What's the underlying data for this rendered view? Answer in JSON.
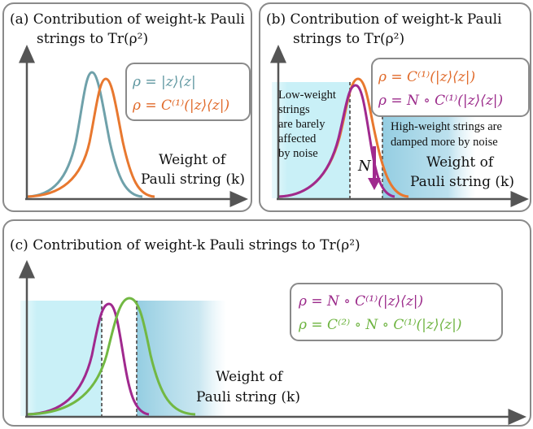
{
  "panel_a": {
    "title_line1": "(a) Contribution of weight-k Pauli",
    "title_line2": "strings to Tr(ρ²)",
    "legend": [
      "ρ = |z⟩⟨z|",
      "ρ = C⁽¹⁾(|z⟩⟨z|)"
    ],
    "axis_label_line1": "Weight of",
    "axis_label_line2": "Pauli string (k)"
  },
  "panel_b": {
    "title_line1": "(b) Contribution of weight-k Pauli",
    "title_line2": "strings to Tr(ρ²)",
    "legend": [
      "ρ = C⁽¹⁾(|z⟩⟨z|)",
      "ρ = N ∘ C⁽¹⁾(|z⟩⟨z|)"
    ],
    "low_weight_note": [
      "Low-weight",
      "strings",
      "are barely",
      "affected",
      "by noise"
    ],
    "high_weight_note": [
      "High-weight strings are",
      "damped more by noise"
    ],
    "noise_symbol": "N",
    "axis_label_line1": "Weight of",
    "axis_label_line2": "Pauli string (k)"
  },
  "panel_c": {
    "title": "(c) Contribution of weight-k Pauli strings to Tr(ρ²)",
    "legend": [
      "ρ = N ∘ C⁽¹⁾(|z⟩⟨z|)",
      "ρ = C⁽²⁾ ∘ N ∘ C⁽¹⁾(|z⟩⟨z|)"
    ],
    "axis_label_line1": "Weight of",
    "axis_label_line2": "Pauli string (k)"
  },
  "colors": {
    "teal": "#6fa1aa",
    "orange": "#e8782f",
    "purple": "#a0298e",
    "green": "#72b843",
    "cyan_region": "#c9f0f7",
    "blue_region": "#8fcbe0",
    "axis": "#5a5a5a"
  }
}
